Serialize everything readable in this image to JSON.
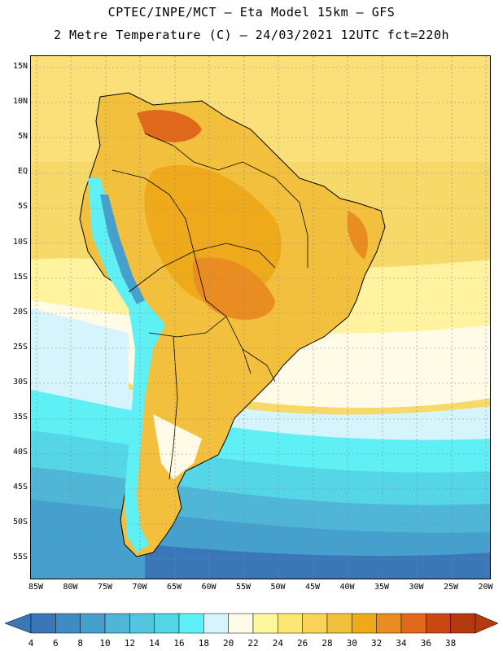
{
  "title_line1": "CPTEC/INPE/MCT –  Eta Model 15km – GFS",
  "title_line2": "2 Metre Temperature (C) – 24/03/2021 12UTC fct=220h",
  "lat_labels": [
    "15N",
    "10N",
    "5N",
    "EQ",
    "5S",
    "10S",
    "15S",
    "20S",
    "25S",
    "30S",
    "35S",
    "40S",
    "45S",
    "50S",
    "55S"
  ],
  "lon_labels": [
    "85W",
    "80W",
    "75W",
    "70W",
    "65W",
    "60W",
    "55W",
    "50W",
    "45W",
    "40W",
    "35W",
    "30W",
    "25W",
    "20W"
  ],
  "colorbar": {
    "labels": [
      "4",
      "6",
      "8",
      "10",
      "12",
      "14",
      "16",
      "18",
      "20",
      "22",
      "24",
      "26",
      "28",
      "30",
      "32",
      "34",
      "36",
      "38"
    ],
    "colors": [
      "#3a77b8",
      "#3f8bc4",
      "#45a0cd",
      "#4fb6d8",
      "#52c6de",
      "#54d6e6",
      "#5ef0f5",
      "#d6f4fc",
      "#fffbe6",
      "#fff6a0",
      "#fde672",
      "#f9d458",
      "#f2c03c",
      "#efaa1c",
      "#e98c22",
      "#e0681a",
      "#c94712",
      "#b33a0e"
    ]
  }
}
